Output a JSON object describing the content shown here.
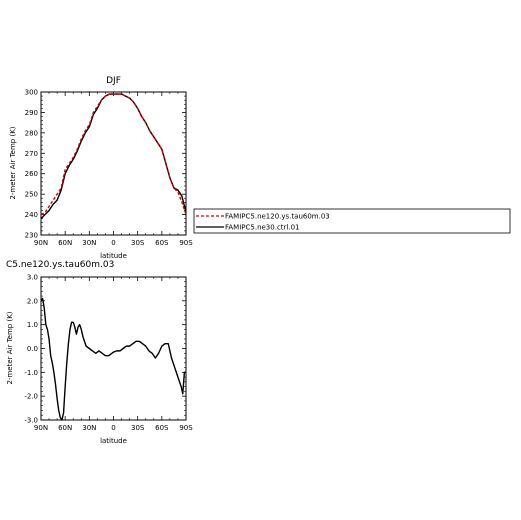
{
  "chart_data": [
    {
      "type": "line",
      "title": "DJF",
      "xlabel": "latitude",
      "ylabel": "2-meter Air Temp (K)",
      "x_categories": [
        "90N",
        "60N",
        "30N",
        "0",
        "30S",
        "60S",
        "90S"
      ],
      "xlim": [
        90,
        -90
      ],
      "ylim": [
        230,
        300
      ],
      "y_ticks": [
        230,
        240,
        250,
        260,
        270,
        280,
        290,
        300
      ],
      "legend_position": "right",
      "series": [
        {
          "name": "FAMIPC5.ne120.ys.tau60m.03",
          "color": "#d40000",
          "dash": "dashed",
          "points": [
            [
              90,
              240
            ],
            [
              85,
              241
            ],
            [
              80,
              244
            ],
            [
              75,
              247
            ],
            [
              70,
              250
            ],
            [
              65,
              253
            ],
            [
              60,
              262
            ],
            [
              55,
              265
            ],
            [
              50,
              268
            ],
            [
              45,
              272
            ],
            [
              40,
              277
            ],
            [
              35,
              281
            ],
            [
              30,
              284
            ],
            [
              25,
              290
            ],
            [
              20,
              293
            ],
            [
              15,
              296
            ],
            [
              10,
              298
            ],
            [
              5,
              299
            ],
            [
              0,
              299
            ],
            [
              -5,
              299
            ],
            [
              -10,
              299
            ],
            [
              -15,
              298
            ],
            [
              -20,
              297
            ],
            [
              -25,
              295
            ],
            [
              -30,
              292
            ],
            [
              -35,
              288
            ],
            [
              -40,
              285
            ],
            [
              -45,
              281
            ],
            [
              -50,
              278
            ],
            [
              -55,
              275
            ],
            [
              -60,
              272
            ],
            [
              -65,
              265
            ],
            [
              -70,
              258
            ],
            [
              -75,
              253
            ],
            [
              -80,
              251
            ],
            [
              -85,
              246
            ],
            [
              -90,
              240
            ]
          ]
        },
        {
          "name": "FAMIPC5.ne30.ctrl.01",
          "color": "#000000",
          "dash": "solid",
          "points": [
            [
              90,
              238
            ],
            [
              85,
              240
            ],
            [
              80,
              242
            ],
            [
              75,
              245
            ],
            [
              70,
              247
            ],
            [
              65,
              252
            ],
            [
              60,
              260
            ],
            [
              55,
              264
            ],
            [
              50,
              267
            ],
            [
              45,
              271
            ],
            [
              40,
              276
            ],
            [
              35,
              280
            ],
            [
              30,
              283
            ],
            [
              25,
              289
            ],
            [
              20,
              292
            ],
            [
              15,
              296
            ],
            [
              10,
              298
            ],
            [
              5,
              299
            ],
            [
              0,
              299
            ],
            [
              -5,
              299
            ],
            [
              -10,
              299
            ],
            [
              -15,
              298
            ],
            [
              -20,
              297
            ],
            [
              -25,
              295
            ],
            [
              -30,
              292
            ],
            [
              -35,
              288
            ],
            [
              -40,
              285
            ],
            [
              -45,
              281
            ],
            [
              -50,
              278
            ],
            [
              -55,
              275
            ],
            [
              -60,
              272
            ],
            [
              -65,
              265
            ],
            [
              -70,
              258
            ],
            [
              -75,
              253
            ],
            [
              -80,
              252
            ],
            [
              -85,
              249
            ],
            [
              -90,
              241
            ]
          ]
        }
      ]
    },
    {
      "type": "line",
      "title": "C5.ne120.ys.tau60m.03",
      "xlabel": "latitude",
      "ylabel": "2-meter Air Temp (K)",
      "x_categories": [
        "90N",
        "60N",
        "30N",
        "0",
        "30S",
        "60S",
        "90S"
      ],
      "xlim": [
        90,
        -90
      ],
      "ylim": [
        -3.0,
        3.0
      ],
      "y_ticks": [
        "-3.0",
        "-2.0",
        "-1.0",
        "0.0",
        "1.0",
        "2.0",
        "3.0"
      ],
      "series": [
        {
          "name": "",
          "color": "#000000",
          "dash": "solid",
          "points": [
            [
              90,
              2.0
            ],
            [
              88,
              2.1
            ],
            [
              86,
              1.7
            ],
            [
              84,
              1.0
            ],
            [
              82,
              0.8
            ],
            [
              80,
              0.4
            ],
            [
              78,
              -0.3
            ],
            [
              76,
              -0.6
            ],
            [
              74,
              -1.0
            ],
            [
              72,
              -1.5
            ],
            [
              70,
              -2.1
            ],
            [
              68,
              -2.6
            ],
            [
              66,
              -2.9
            ],
            [
              64,
              -3.0
            ],
            [
              62,
              -2.7
            ],
            [
              60,
              -1.6
            ],
            [
              58,
              -0.6
            ],
            [
              56,
              0.2
            ],
            [
              54,
              0.8
            ],
            [
              52,
              1.1
            ],
            [
              50,
              1.1
            ],
            [
              48,
              0.9
            ],
            [
              46,
              0.6
            ],
            [
              44,
              0.9
            ],
            [
              42,
              1.0
            ],
            [
              40,
              0.8
            ],
            [
              38,
              0.5
            ],
            [
              36,
              0.3
            ],
            [
              34,
              0.1
            ],
            [
              30,
              0.0
            ],
            [
              26,
              -0.1
            ],
            [
              22,
              -0.2
            ],
            [
              18,
              -0.1
            ],
            [
              14,
              -0.2
            ],
            [
              10,
              -0.3
            ],
            [
              6,
              -0.3
            ],
            [
              2,
              -0.2
            ],
            [
              0,
              -0.15
            ],
            [
              -4,
              -0.1
            ],
            [
              -8,
              -0.1
            ],
            [
              -12,
              0.0
            ],
            [
              -16,
              0.1
            ],
            [
              -20,
              0.1
            ],
            [
              -24,
              0.2
            ],
            [
              -28,
              0.3
            ],
            [
              -32,
              0.3
            ],
            [
              -36,
              0.2
            ],
            [
              -40,
              0.1
            ],
            [
              -44,
              -0.1
            ],
            [
              -48,
              -0.2
            ],
            [
              -52,
              -0.4
            ],
            [
              -56,
              -0.2
            ],
            [
              -60,
              0.1
            ],
            [
              -64,
              0.2
            ],
            [
              -68,
              0.2
            ],
            [
              -72,
              -0.4
            ],
            [
              -76,
              -0.8
            ],
            [
              -80,
              -1.2
            ],
            [
              -84,
              -1.6
            ],
            [
              -86,
              -1.9
            ],
            [
              -88,
              -1.0
            ],
            [
              -90,
              -1.0
            ]
          ]
        }
      ]
    }
  ]
}
